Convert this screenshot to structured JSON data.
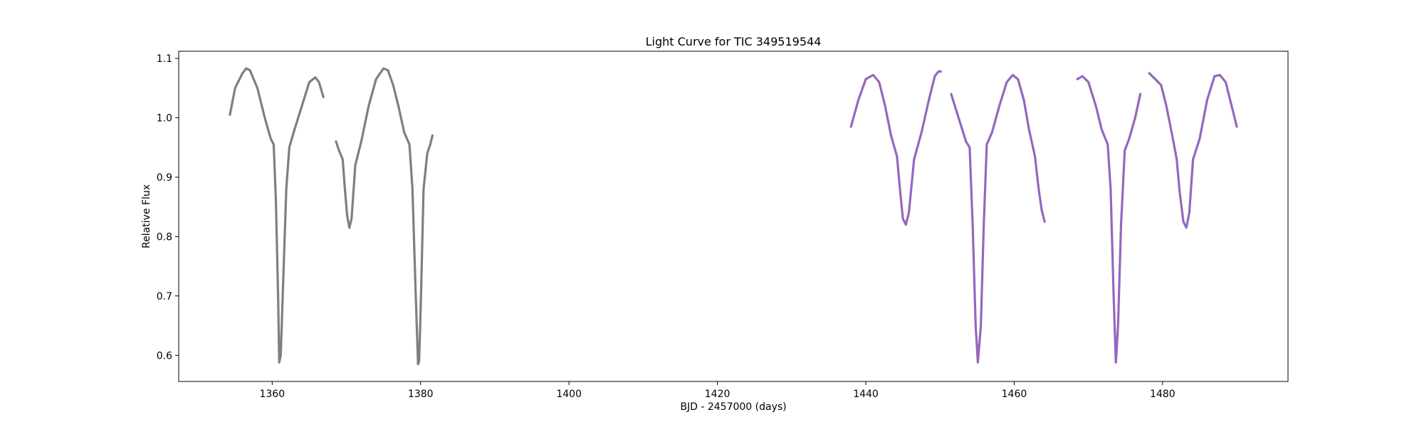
{
  "chart_data": {
    "type": "scatter",
    "title": "Light Curve for TIC 349519544",
    "xlabel": "BJD - 2457000 (days)",
    "ylabel": "Relative Flux",
    "xlim": [
      1347.4,
      1496.9
    ],
    "ylim": [
      0.556,
      1.112
    ],
    "xticks": [
      1360,
      1380,
      1400,
      1420,
      1440,
      1460,
      1480
    ],
    "yticks": [
      0.6,
      0.7,
      0.8,
      0.9,
      1.0,
      1.1
    ],
    "xtick_labels": [
      "1360",
      "1380",
      "1400",
      "1420",
      "1440",
      "1460",
      "1480"
    ],
    "ytick_labels": [
      "0.6",
      "0.7",
      "0.8",
      "0.9",
      "1.0",
      "1.1"
    ],
    "grid": false,
    "legend": "none",
    "series": [
      {
        "color": "#7f7f7f",
        "segments": [
          {
            "x": [
              1354.3,
              1355.0,
              1356.0,
              1356.5,
              1357.0,
              1358.0,
              1359.0,
              1359.8,
              1360.2,
              1360.5,
              1360.8,
              1360.95,
              1361.15,
              1361.5,
              1361.9,
              1362.3,
              1363.0,
              1364.0,
              1365.0,
              1365.8,
              1366.3,
              1366.9
            ],
            "y": [
              1.005,
              1.05,
              1.075,
              1.083,
              1.08,
              1.05,
              1.0,
              0.965,
              0.955,
              0.86,
              0.7,
              0.588,
              0.6,
              0.73,
              0.88,
              0.95,
              0.98,
              1.02,
              1.06,
              1.068,
              1.06,
              1.035
            ]
          },
          {
            "x": [
              1368.6,
              1369.0,
              1369.5,
              1369.8,
              1370.1,
              1370.4,
              1370.7,
              1371.2,
              1372.0,
              1373.0,
              1374.0,
              1375.0,
              1375.6,
              1376.3,
              1377.0,
              1377.8,
              1378.5,
              1378.9,
              1379.3,
              1379.65,
              1379.8,
              1380.05,
              1380.4,
              1380.9,
              1381.3,
              1381.6
            ],
            "y": [
              0.96,
              0.945,
              0.93,
              0.88,
              0.835,
              0.815,
              0.83,
              0.92,
              0.96,
              1.02,
              1.065,
              1.083,
              1.08,
              1.055,
              1.02,
              0.975,
              0.955,
              0.88,
              0.72,
              0.585,
              0.59,
              0.7,
              0.88,
              0.94,
              0.955,
              0.97
            ]
          }
        ]
      },
      {
        "color": "#9467bd",
        "segments": [
          {
            "x": [
              1438.0,
              1439.0,
              1440.0,
              1441.0,
              1441.8,
              1442.6,
              1443.4,
              1444.2,
              1444.6,
              1445.0,
              1445.4,
              1445.8,
              1446.5,
              1447.5,
              1448.5,
              1449.3,
              1449.8,
              1450.1
            ],
            "y": [
              0.985,
              1.03,
              1.065,
              1.072,
              1.06,
              1.02,
              0.97,
              0.935,
              0.88,
              0.83,
              0.82,
              0.84,
              0.93,
              0.975,
              1.03,
              1.07,
              1.078,
              1.078
            ]
          },
          {
            "x": [
              1451.5,
              1452.5,
              1453.5,
              1454.0,
              1454.4,
              1454.8,
              1455.1,
              1455.5,
              1455.9,
              1456.3,
              1457.0,
              1458.0,
              1459.0,
              1459.8,
              1460.5,
              1461.3,
              1462.0,
              1462.8,
              1463.3,
              1463.7,
              1464.1
            ],
            "y": [
              1.04,
              1.0,
              0.96,
              0.95,
              0.82,
              0.65,
              0.588,
              0.65,
              0.82,
              0.955,
              0.975,
              1.02,
              1.06,
              1.072,
              1.065,
              1.03,
              0.98,
              0.935,
              0.88,
              0.845,
              0.825
            ]
          },
          {
            "x": [
              1468.5,
              1469.2,
              1470.0,
              1471.0,
              1471.8,
              1472.6,
              1473.0,
              1473.4,
              1473.7,
              1474.0,
              1474.4,
              1474.9,
              1475.5,
              1476.3,
              1477.0
            ],
            "y": [
              1.065,
              1.07,
              1.06,
              1.02,
              0.98,
              0.955,
              0.88,
              0.7,
              0.588,
              0.65,
              0.82,
              0.945,
              0.965,
              1.0,
              1.04
            ]
          },
          {
            "x": [
              1478.2,
              1479.0,
              1479.8,
              1480.5,
              1481.3,
              1481.9,
              1482.3,
              1482.8,
              1483.2,
              1483.6,
              1484.1,
              1485.0,
              1486.0,
              1487.0,
              1487.7,
              1488.5,
              1489.3,
              1490.0
            ],
            "y": [
              1.075,
              1.065,
              1.055,
              1.02,
              0.97,
              0.93,
              0.875,
              0.825,
              0.815,
              0.84,
              0.93,
              0.965,
              1.03,
              1.07,
              1.072,
              1.06,
              1.02,
              0.985
            ]
          }
        ]
      }
    ]
  }
}
